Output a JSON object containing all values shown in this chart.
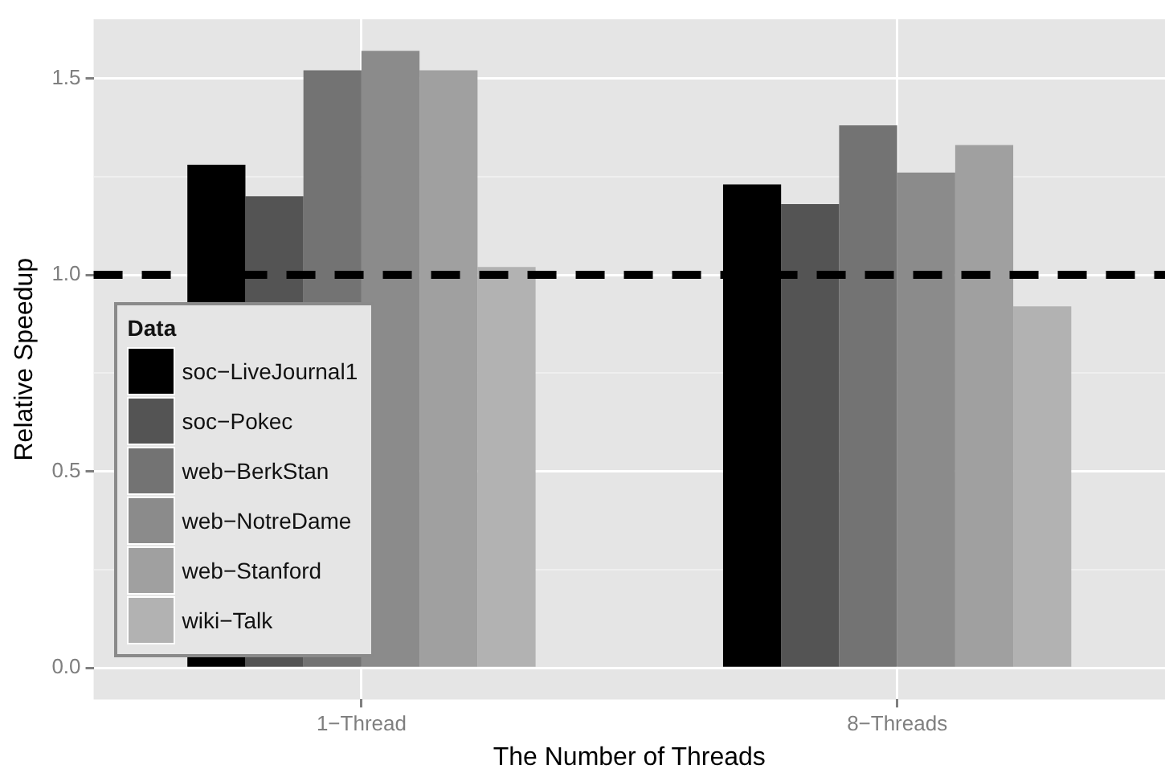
{
  "chart_data": {
    "type": "bar",
    "xlabel": "The Number of Threads",
    "ylabel": "Relative Speedup",
    "legend_title": "Data",
    "categories": [
      "1−Thread",
      "8−Threads"
    ],
    "series": [
      {
        "name": "soc−LiveJournal1",
        "color": "#000000",
        "values": [
          1.28,
          1.23
        ]
      },
      {
        "name": "soc−Pokec",
        "color": "#545454",
        "values": [
          1.2,
          1.18
        ]
      },
      {
        "name": "web−BerkStan",
        "color": "#737373",
        "values": [
          1.52,
          1.38
        ]
      },
      {
        "name": "web−NotreDame",
        "color": "#8b8b8b",
        "values": [
          1.57,
          1.26
        ]
      },
      {
        "name": "web−Stanford",
        "color": "#a0a0a0",
        "values": [
          1.52,
          1.33
        ]
      },
      {
        "name": "wiki−Talk",
        "color": "#b2b2b2",
        "values": [
          1.02,
          0.92
        ]
      }
    ],
    "ylim": [
      -0.08,
      1.65
    ],
    "yticks": [
      {
        "value": 0,
        "label": "0.0"
      },
      {
        "value": 0.25,
        "label": null
      },
      0.5,
      {
        "value": 0.75,
        "label": null
      },
      {
        "value": 1,
        "label": "1.0"
      },
      {
        "value": 1.25,
        "label": null
      },
      1.5
    ],
    "ref_lines": [
      {
        "axis": "y",
        "value": 1,
        "color": "#000000",
        "line_style": "dashed"
      }
    ],
    "grid": true,
    "legend": "bottom left"
  }
}
